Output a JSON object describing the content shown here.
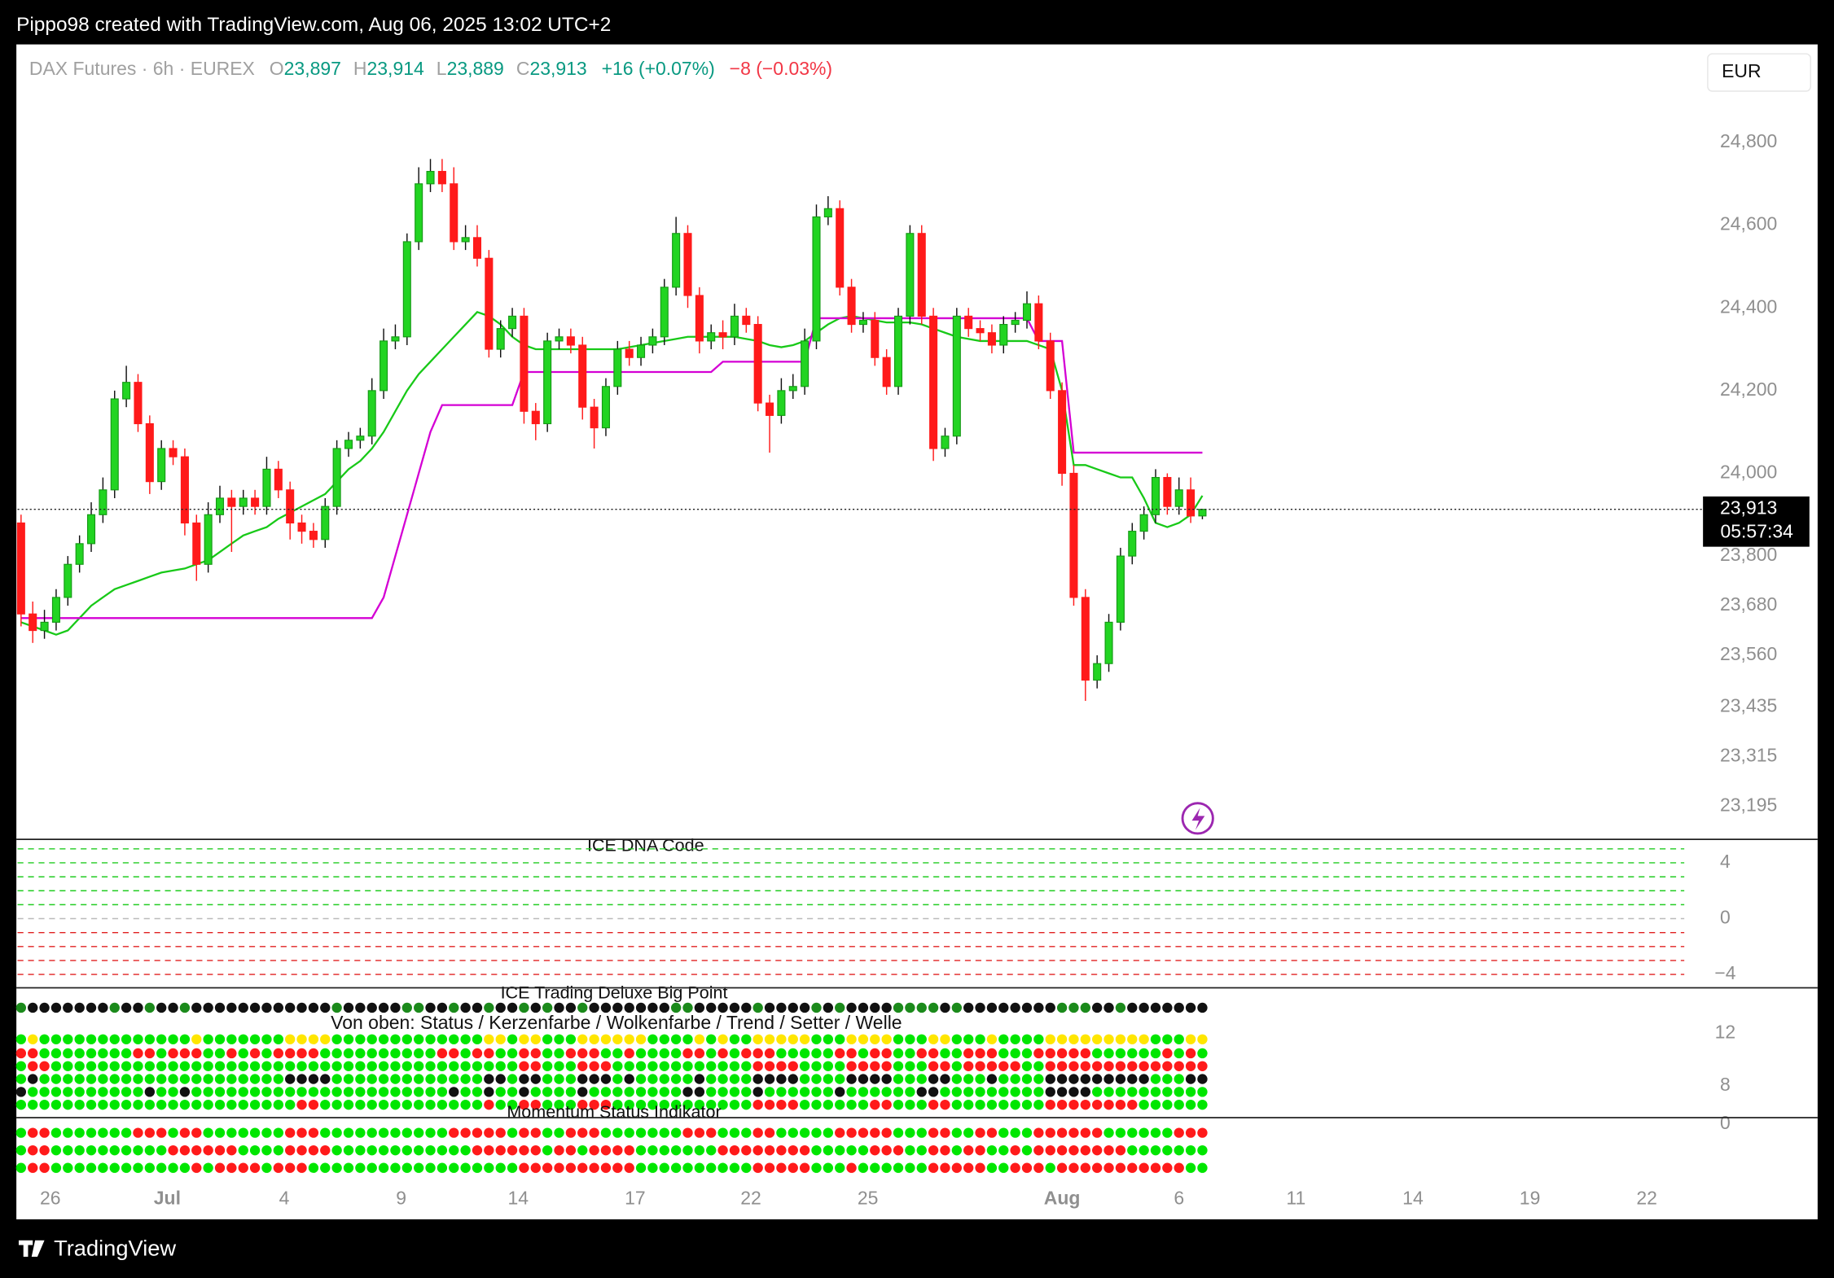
{
  "header": {
    "text": "Pippo98 created with TradingView.com, Aug 06, 2025 13:02 UTC+2"
  },
  "footer": {
    "brand": "TradingView"
  },
  "chart_data": [
    {
      "type": "candlestick",
      "symbol": "DAX Futures · 6h · EUREX",
      "ohlc": [
        {
          "label": "O",
          "value": "23,897"
        },
        {
          "label": "H",
          "value": "23,914"
        },
        {
          "label": "L",
          "value": "23,889"
        },
        {
          "label": "C",
          "value": "23,913"
        }
      ],
      "change": "+16 (+0.07%)",
      "change_prev": "−8 (−0.03%)",
      "currency": "EUR",
      "price_label": "23,913",
      "countdown": "05:57:34",
      "up_color": "#22d422",
      "down_color": "#ff1a1a",
      "x": [
        0,
        1,
        2,
        3,
        4,
        5,
        6,
        7,
        8,
        9,
        10,
        11,
        12,
        13,
        14,
        15,
        16,
        17,
        18,
        19,
        20,
        21,
        22,
        23,
        24,
        25,
        26,
        27,
        28,
        29,
        30,
        31,
        32,
        33,
        34,
        35,
        36,
        37,
        38,
        39,
        40,
        41,
        42,
        43,
        44,
        45,
        46,
        47,
        48,
        49,
        50,
        51,
        52,
        53,
        54,
        55,
        56,
        57,
        58,
        59,
        60,
        61,
        62,
        63,
        64,
        65,
        66,
        67,
        68,
        69,
        70,
        71,
        72,
        73,
        74,
        75,
        76,
        77,
        78,
        79,
        80,
        81,
        82,
        83,
        84,
        85,
        86,
        87,
        88,
        89,
        90,
        91,
        92,
        93,
        94,
        95,
        96,
        97,
        98,
        99,
        100,
        101
      ],
      "open": [
        23880,
        23660,
        23620,
        23640,
        23700,
        23780,
        23830,
        23900,
        23960,
        24180,
        24220,
        24120,
        23980,
        24060,
        24040,
        23880,
        23780,
        23900,
        23940,
        23920,
        23940,
        23920,
        24010,
        23960,
        23880,
        23860,
        23840,
        23920,
        24060,
        24080,
        24090,
        24200,
        24320,
        24330,
        24560,
        24700,
        24730,
        24700,
        24560,
        24570,
        24520,
        24300,
        24350,
        24380,
        24150,
        24120,
        24320,
        24330,
        24310,
        24160,
        24110,
        24210,
        24300,
        24280,
        24310,
        24330,
        24450,
        24580,
        24430,
        24320,
        24340,
        24330,
        24380,
        24360,
        24170,
        24140,
        24200,
        24210,
        24320,
        24620,
        24640,
        24450,
        24360,
        24370,
        24280,
        24210,
        24380,
        24580,
        24380,
        24060,
        24090,
        24380,
        24350,
        24340,
        24310,
        24360,
        24370,
        24410,
        24320,
        24200,
        24000,
        23700,
        23500,
        23540,
        23640,
        23800,
        23860,
        23900,
        23990,
        23920,
        23960,
        23897
      ],
      "high": [
        23900,
        23690,
        23670,
        23720,
        23800,
        23850,
        23930,
        23990,
        24200,
        24260,
        24240,
        24140,
        24080,
        24080,
        24060,
        23900,
        23930,
        23970,
        23960,
        23960,
        23960,
        24040,
        24030,
        23980,
        23900,
        23880,
        23940,
        24080,
        24100,
        24110,
        24230,
        24350,
        24360,
        24580,
        24740,
        24760,
        24760,
        24740,
        24600,
        24600,
        24540,
        24370,
        24400,
        24400,
        24170,
        24340,
        24350,
        24350,
        24330,
        24180,
        24230,
        24320,
        24320,
        24330,
        24350,
        24470,
        24620,
        24600,
        24450,
        24360,
        24370,
        24410,
        24400,
        24380,
        24190,
        24230,
        24240,
        24350,
        24650,
        24670,
        24660,
        24470,
        24390,
        24390,
        24300,
        24400,
        24600,
        24600,
        24400,
        24110,
        24400,
        24400,
        24370,
        24360,
        24380,
        24390,
        24440,
        24430,
        24340,
        24220,
        24020,
        23720,
        23560,
        23660,
        23820,
        23880,
        23920,
        24010,
        24000,
        23990,
        23990,
        23914
      ],
      "low": [
        23630,
        23590,
        23600,
        23620,
        23680,
        23760,
        23810,
        23880,
        23940,
        24160,
        24100,
        23950,
        23960,
        24020,
        23850,
        23740,
        23760,
        23880,
        23810,
        23900,
        23900,
        23900,
        23940,
        23840,
        23830,
        23820,
        23820,
        23900,
        24040,
        24060,
        24070,
        24180,
        24300,
        24310,
        24540,
        24680,
        24680,
        24540,
        24540,
        24500,
        24280,
        24280,
        24330,
        24120,
        24080,
        24100,
        24300,
        24290,
        24130,
        24060,
        24090,
        24190,
        24260,
        24260,
        24290,
        24310,
        24430,
        24400,
        24290,
        24300,
        24300,
        24310,
        24340,
        24150,
        24050,
        24120,
        24180,
        24190,
        24300,
        24600,
        24430,
        24340,
        24340,
        24260,
        24190,
        24190,
        24360,
        24360,
        24030,
        24040,
        24070,
        24330,
        24320,
        24290,
        24290,
        24340,
        24350,
        24300,
        24180,
        23970,
        23680,
        23450,
        23480,
        23520,
        23620,
        23780,
        23840,
        23880,
        23900,
        23900,
        23880,
        23889
      ],
      "close": [
        23660,
        23620,
        23640,
        23700,
        23780,
        23830,
        23900,
        23960,
        24180,
        24220,
        24120,
        23980,
        24060,
        24040,
        23880,
        23780,
        23900,
        23940,
        23920,
        23940,
        23920,
        24010,
        23960,
        23880,
        23860,
        23840,
        23920,
        24060,
        24080,
        24090,
        24200,
        24320,
        24330,
        24560,
        24700,
        24730,
        24700,
        24560,
        24570,
        24520,
        24300,
        24350,
        24380,
        24150,
        24120,
        24320,
        24330,
        24310,
        24160,
        24110,
        24210,
        24300,
        24280,
        24310,
        24330,
        24450,
        24580,
        24430,
        24320,
        24340,
        24330,
        24380,
        24360,
        24170,
        24140,
        24200,
        24210,
        24320,
        24620,
        24640,
        24450,
        24360,
        24370,
        24280,
        24210,
        24380,
        24580,
        24380,
        24060,
        24090,
        24380,
        24350,
        24340,
        24310,
        24360,
        24370,
        24410,
        24320,
        24200,
        24000,
        23700,
        23500,
        23540,
        23640,
        23800,
        23860,
        23900,
        23990,
        23920,
        23960,
        23897,
        23913
      ],
      "series": [
        {
          "color": "#18c918",
          "values": [
            23640,
            23630,
            23620,
            23610,
            23620,
            23650,
            23680,
            23700,
            23720,
            23730,
            23740,
            23750,
            23760,
            23765,
            23770,
            23780,
            23790,
            23810,
            23830,
            23850,
            23860,
            23870,
            23890,
            23905,
            23920,
            23935,
            23950,
            23980,
            24010,
            24030,
            24060,
            24100,
            24150,
            24200,
            24240,
            24270,
            24300,
            24330,
            24360,
            24390,
            24380,
            24360,
            24330,
            24310,
            24300,
            24300,
            24300,
            24300,
            24300,
            24300,
            24300,
            24300,
            24305,
            24310,
            24315,
            24320,
            24325,
            24330,
            24330,
            24330,
            24330,
            24330,
            24325,
            24320,
            24310,
            24305,
            24310,
            24320,
            24340,
            24360,
            24375,
            24380,
            24375,
            24370,
            24365,
            24365,
            24365,
            24360,
            24350,
            24340,
            24330,
            24325,
            24320,
            24320,
            24320,
            24320,
            24320,
            24310,
            24300,
            24200,
            24020,
            24020,
            24010,
            24000,
            23990,
            23990,
            23940,
            23880,
            23870,
            23880,
            23900,
            23946
          ]
        },
        {
          "color": "#d400d4",
          "values": [
            23650,
            23650,
            23650,
            23650,
            23650,
            23650,
            23650,
            23650,
            23650,
            23650,
            23650,
            23650,
            23650,
            23650,
            23650,
            23650,
            23650,
            23650,
            23650,
            23650,
            23650,
            23650,
            23650,
            23650,
            23650,
            23650,
            23650,
            23650,
            23650,
            23650,
            23650,
            23700,
            23800,
            23900,
            24000,
            24100,
            24165,
            24165,
            24165,
            24165,
            24165,
            24165,
            24165,
            24245,
            24245,
            24245,
            24245,
            24245,
            24245,
            24245,
            24245,
            24245,
            24245,
            24245,
            24245,
            24245,
            24245,
            24245,
            24245,
            24245,
            24270,
            24270,
            24270,
            24270,
            24270,
            24270,
            24270,
            24270,
            24375,
            24375,
            24375,
            24375,
            24375,
            24375,
            24375,
            24375,
            24375,
            24375,
            24375,
            24375,
            24375,
            24375,
            24375,
            24375,
            24375,
            24375,
            24375,
            24320,
            24320,
            24320,
            24050,
            24050,
            24050,
            24050,
            24050,
            24050,
            24050,
            24050,
            24050,
            24050,
            24050,
            24050
          ]
        }
      ],
      "xlim": [
        -0.3,
        143.7
      ],
      "xticks": [
        {
          "value": 2.5,
          "label": "26"
        },
        {
          "value": 12.5,
          "label": "Jul"
        },
        {
          "value": 22.5,
          "label": "4"
        },
        {
          "value": 32.5,
          "label": "9"
        },
        {
          "value": 42.5,
          "label": "14"
        },
        {
          "value": 52.5,
          "label": "17"
        },
        {
          "value": 62.4,
          "label": "22"
        },
        {
          "value": 72.4,
          "label": "25"
        },
        {
          "value": 89,
          "label": "Aug"
        },
        {
          "value": 99,
          "label": "6"
        },
        {
          "value": 109,
          "label": "11"
        },
        {
          "value": 119,
          "label": "14"
        },
        {
          "value": 129,
          "label": "19"
        },
        {
          "value": 139,
          "label": "22"
        }
      ],
      "ylim": [
        23115,
        25037
      ],
      "yticks": [
        {
          "value": 24800,
          "label": "24,800"
        },
        {
          "value": 24600,
          "label": "24,600"
        },
        {
          "value": 24400,
          "label": "24,400"
        },
        {
          "value": 24200,
          "label": "24,200"
        },
        {
          "value": 24000,
          "label": "24,000"
        },
        {
          "value": 23800,
          "label": "23,800"
        },
        {
          "value": 23680,
          "label": "23,680"
        },
        {
          "value": 23560,
          "label": "23,560"
        },
        {
          "value": 23435,
          "label": "23,435"
        },
        {
          "value": 23315,
          "label": "23,315"
        },
        {
          "value": 23195,
          "label": "23,195"
        }
      ]
    },
    {
      "type": "levels",
      "title": "ICE DNA Code",
      "ylim": [
        -4.96,
        5.68
      ],
      "yticks": [
        4,
        0,
        {
          "value": -4,
          "label": "−4"
        }
      ],
      "grid": true,
      "up_color": "#22cc22",
      "down_color": "#e02020"
    },
    {
      "type": "dots",
      "title": "ICE Trading Deluxe Big Point",
      "subtitle": "Von oben: Status / Kerzenfarbe / Wolkenfarbe / Trend / Setter / Welle",
      "ylim": [
        5.6,
        15.47
      ],
      "yticks": [
        12,
        8
      ]
    },
    {
      "type": "momentum",
      "title": "Momentum Status Indikator",
      "ylim": [
        -4.5,
        0.5
      ],
      "yticks": [
        0
      ]
    }
  ]
}
